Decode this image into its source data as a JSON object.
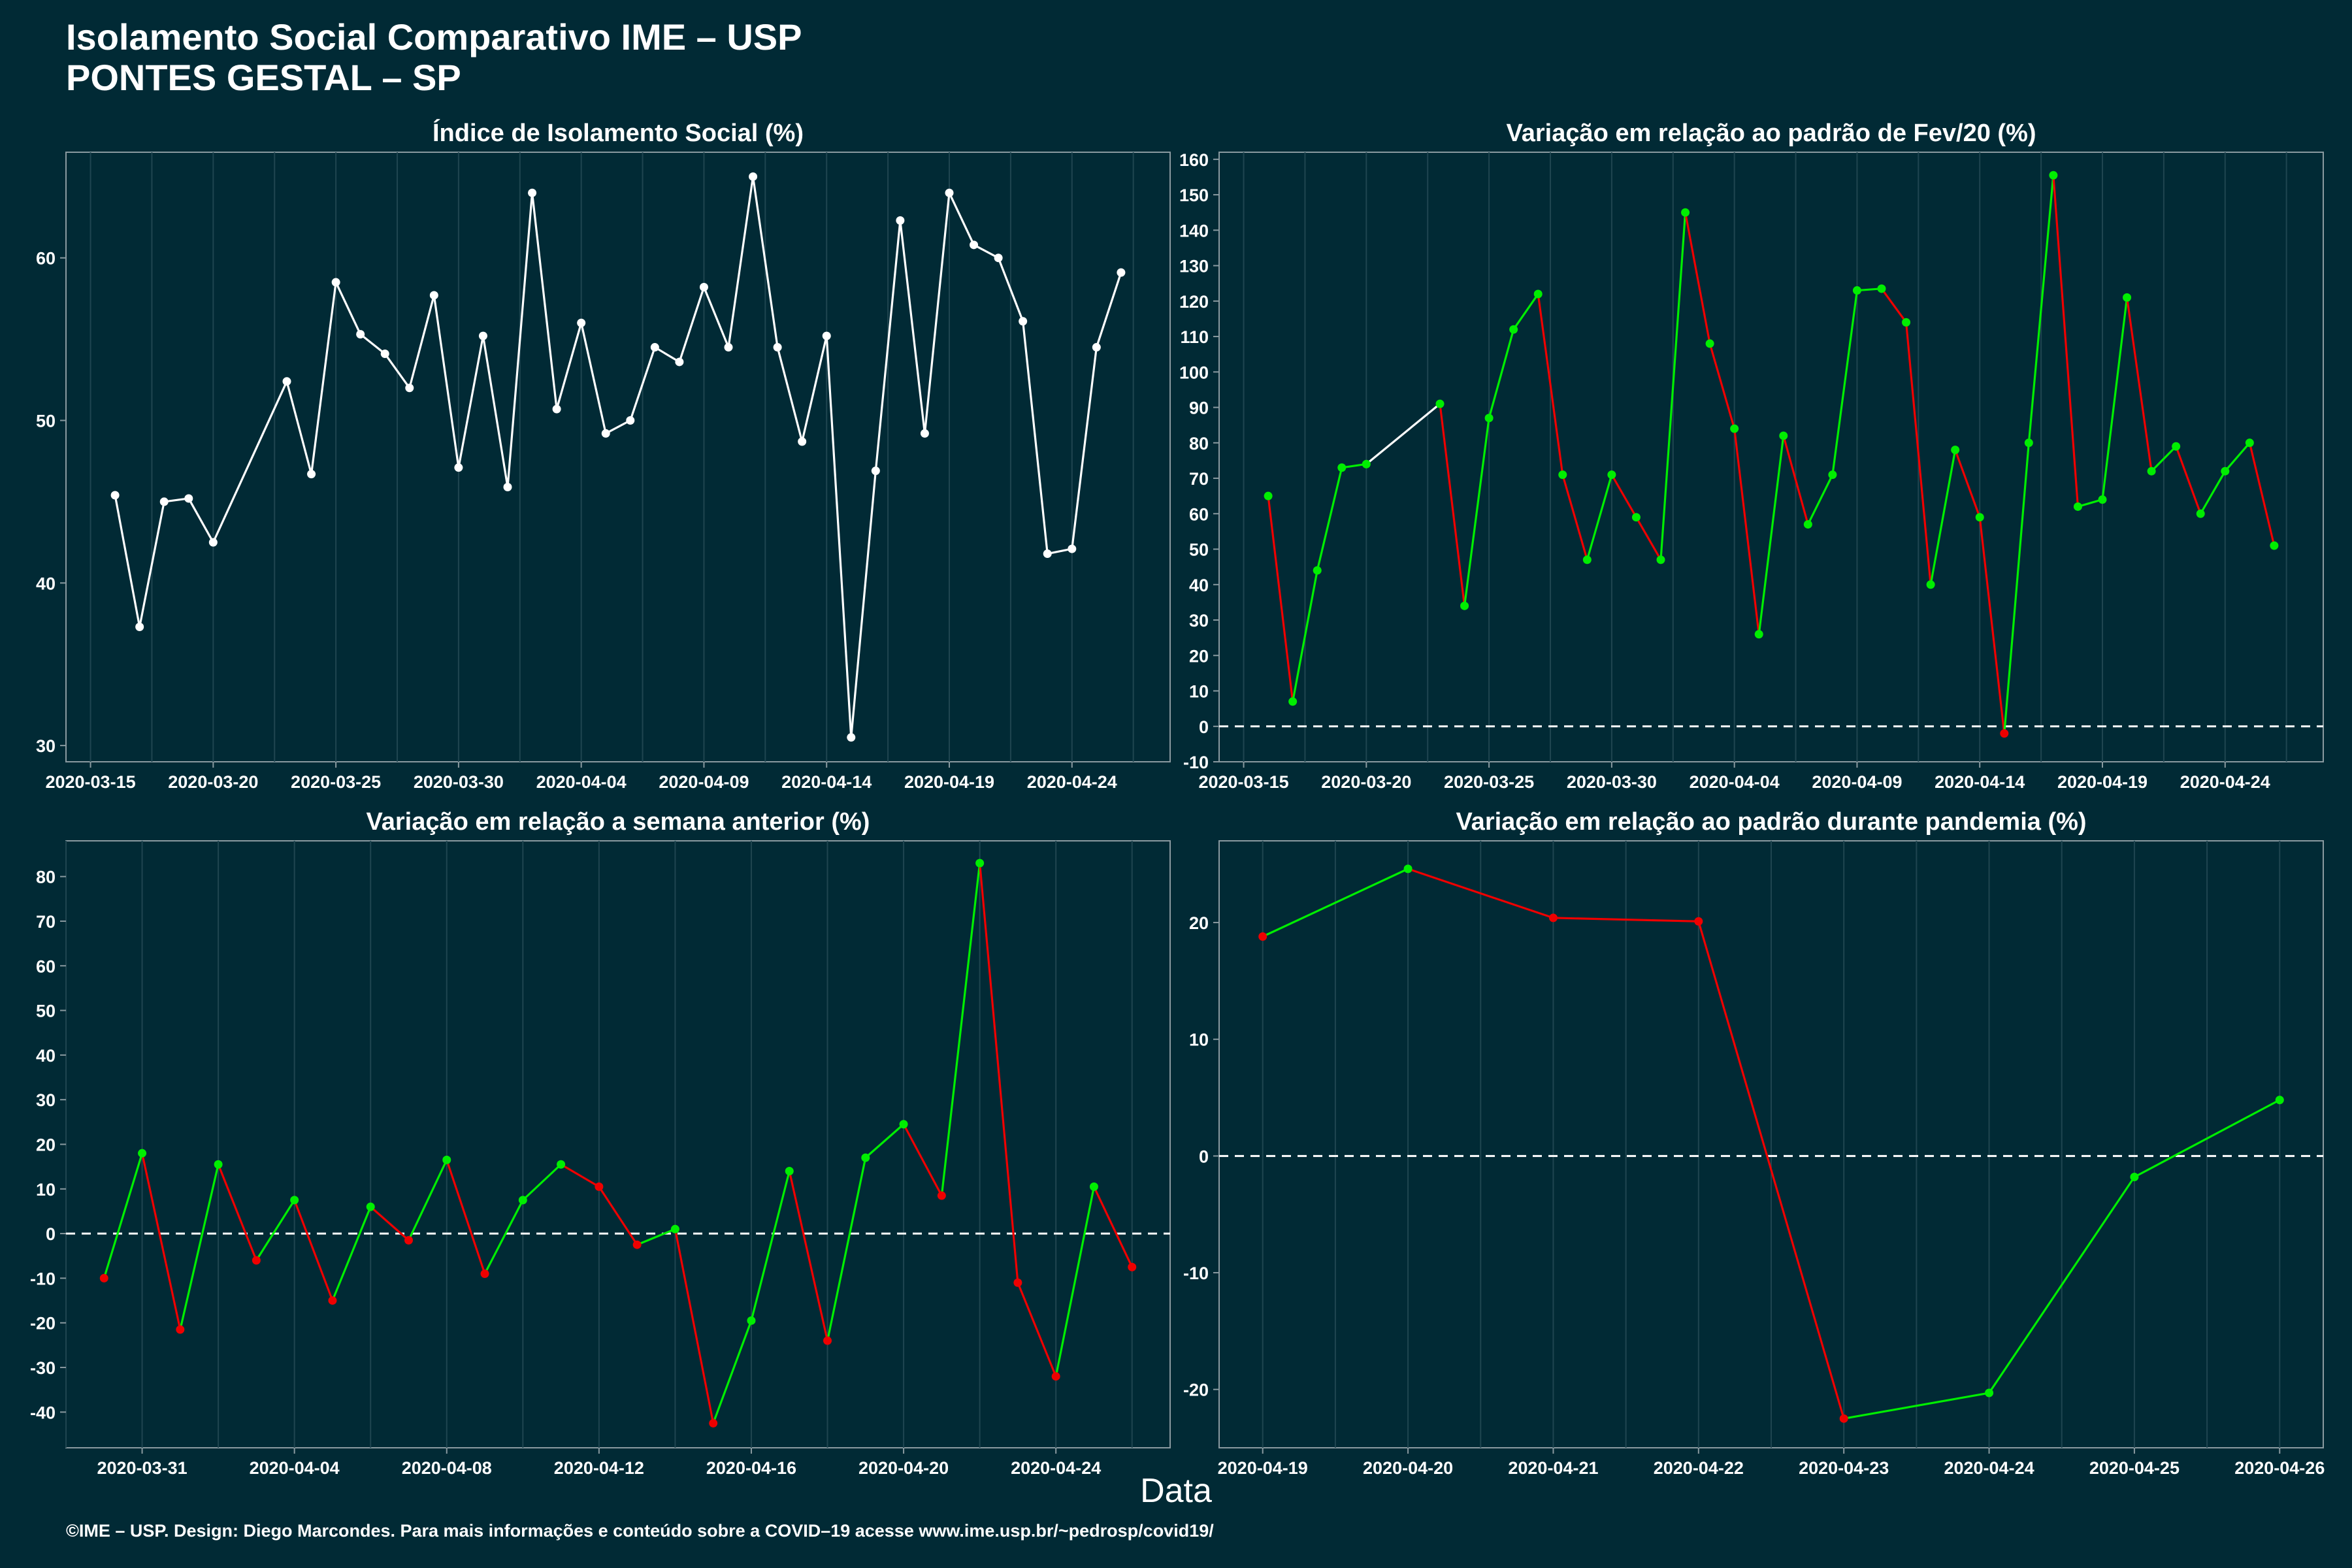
{
  "header": {
    "title_line1": "Isolamento Social Comparativo IME – USP",
    "title_line2": "PONTES GESTAL – SP"
  },
  "footer": "©IME – USP. Design: Diego Marcondes. Para mais informações e conteúdo sobre a COVID–19 acesse www.ime.usp.br/~pedrosp/covid19/",
  "x_axis_label": "Data",
  "colors": {
    "background": "#012a35",
    "white": "#ffffff",
    "positive": "#00ee00",
    "negative": "#ee0000",
    "grid": "#1f4550",
    "axis": "#8a9aa0"
  },
  "chart_data": [
    {
      "id": "indice",
      "type": "line",
      "title": "Índice de Isolamento Social (%)",
      "x_ticks": [
        "2020-03-15",
        "2020-03-20",
        "2020-03-25",
        "2020-03-30",
        "2020-04-04",
        "2020-04-09",
        "2020-04-14",
        "2020-04-19",
        "2020-04-24"
      ],
      "y_ticks": [
        30,
        40,
        50,
        60
      ],
      "ylim": [
        29,
        66.5
      ],
      "xlim": [
        "2020-03-14",
        "2020-04-28"
      ],
      "series": [
        {
          "x": [
            "2020-03-16",
            "2020-03-17",
            "2020-03-18",
            "2020-03-19",
            "2020-03-20",
            "2020-03-23",
            "2020-03-24",
            "2020-03-25",
            "2020-03-26",
            "2020-03-27",
            "2020-03-28",
            "2020-03-29",
            "2020-03-30",
            "2020-03-31",
            "2020-04-01",
            "2020-04-02",
            "2020-04-03",
            "2020-04-04",
            "2020-04-05",
            "2020-04-06",
            "2020-04-07",
            "2020-04-08",
            "2020-04-09",
            "2020-04-10",
            "2020-04-11",
            "2020-04-12",
            "2020-04-13",
            "2020-04-14",
            "2020-04-15",
            "2020-04-16",
            "2020-04-17",
            "2020-04-18",
            "2020-04-19",
            "2020-04-20",
            "2020-04-21",
            "2020-04-22",
            "2020-04-23",
            "2020-04-24",
            "2020-04-25",
            "2020-04-26"
          ],
          "values": [
            45.4,
            37.3,
            45.0,
            45.2,
            42.5,
            52.4,
            46.7,
            58.5,
            55.3,
            54.1,
            52.0,
            57.7,
            47.1,
            55.2,
            45.9,
            64.0,
            50.7,
            56.0,
            49.2,
            50.0,
            54.5,
            53.6,
            58.2,
            54.5,
            65.0,
            54.5,
            48.7,
            55.2,
            30.5,
            46.9,
            62.3,
            49.2,
            64.0,
            60.8,
            60.0,
            56.1,
            41.8,
            42.1,
            54.5,
            59.1
          ]
        }
      ]
    },
    {
      "id": "fev",
      "type": "line",
      "title": "Variação em relação ao padrão de Fev/20 (%)",
      "x_ticks": [
        "2020-03-15",
        "2020-03-20",
        "2020-03-25",
        "2020-03-30",
        "2020-04-04",
        "2020-04-09",
        "2020-04-14",
        "2020-04-19",
        "2020-04-24"
      ],
      "y_ticks": [
        -10,
        0,
        10,
        20,
        30,
        40,
        50,
        60,
        70,
        80,
        90,
        100,
        110,
        120,
        130,
        140,
        150,
        160
      ],
      "ylim": [
        -10,
        162
      ],
      "xlim": [
        "2020-03-14",
        "2020-04-28"
      ],
      "reference_line": 0,
      "series": [
        {
          "x": [
            "2020-03-16",
            "2020-03-17",
            "2020-03-18",
            "2020-03-19",
            "2020-03-20",
            "2020-03-23",
            "2020-03-24",
            "2020-03-25",
            "2020-03-26",
            "2020-03-27",
            "2020-03-28",
            "2020-03-29",
            "2020-03-30",
            "2020-03-31",
            "2020-04-01",
            "2020-04-02",
            "2020-04-03",
            "2020-04-04",
            "2020-04-05",
            "2020-04-06",
            "2020-04-07",
            "2020-04-08",
            "2020-04-09",
            "2020-04-10",
            "2020-04-11",
            "2020-04-12",
            "2020-04-13",
            "2020-04-14",
            "2020-04-15",
            "2020-04-16",
            "2020-04-17",
            "2020-04-18",
            "2020-04-19",
            "2020-04-20",
            "2020-04-21",
            "2020-04-22",
            "2020-04-23",
            "2020-04-24",
            "2020-04-25",
            "2020-04-26"
          ],
          "values": [
            65,
            7,
            44,
            73,
            74,
            91,
            34,
            87,
            112,
            122,
            71,
            47,
            71,
            59,
            47,
            145,
            108,
            84,
            26,
            82,
            57,
            71,
            123,
            123.5,
            114,
            40,
            78,
            59,
            -2,
            80,
            155.5,
            62,
            64,
            121,
            72,
            79,
            60,
            72,
            80,
            51
          ]
        }
      ]
    },
    {
      "id": "semana",
      "type": "line",
      "title": "Variação em relação a semana anterior (%)",
      "x_ticks": [
        "2020-03-31",
        "2020-04-04",
        "2020-04-08",
        "2020-04-12",
        "2020-04-16",
        "2020-04-20",
        "2020-04-24"
      ],
      "y_ticks": [
        -40,
        -30,
        -20,
        -10,
        0,
        10,
        20,
        30,
        40,
        50,
        60,
        70,
        80
      ],
      "ylim": [
        -48,
        88
      ],
      "xlim": [
        "2020-03-29",
        "2020-04-27"
      ],
      "reference_line": 0,
      "series": [
        {
          "x": [
            "2020-03-30",
            "2020-03-31",
            "2020-04-01",
            "2020-04-02",
            "2020-04-03",
            "2020-04-04",
            "2020-04-05",
            "2020-04-06",
            "2020-04-07",
            "2020-04-08",
            "2020-04-09",
            "2020-04-10",
            "2020-04-11",
            "2020-04-12",
            "2020-04-13",
            "2020-04-14",
            "2020-04-15",
            "2020-04-16",
            "2020-04-17",
            "2020-04-18",
            "2020-04-19",
            "2020-04-20",
            "2020-04-21",
            "2020-04-22",
            "2020-04-23",
            "2020-04-24",
            "2020-04-25",
            "2020-04-26"
          ],
          "values": [
            -10,
            18,
            -21.5,
            15.5,
            -6,
            7.5,
            -15,
            6,
            -1.5,
            16.5,
            -9,
            7.5,
            15.5,
            10.5,
            -2.5,
            1,
            -42.5,
            -19.5,
            14,
            -24,
            17,
            24.5,
            8.5,
            83,
            -11,
            -32,
            10.5,
            -7.5
          ]
        }
      ]
    },
    {
      "id": "pandemia",
      "type": "line",
      "title": "Variação em relação ao padrão durante pandemia (%)",
      "x_ticks": [
        "2020-04-19",
        "2020-04-20",
        "2020-04-21",
        "2020-04-22",
        "2020-04-23",
        "2020-04-24",
        "2020-04-25",
        "2020-04-26"
      ],
      "y_ticks": [
        -20,
        -10,
        0,
        10,
        20
      ],
      "ylim": [
        -25,
        27
      ],
      "xlim": [
        "2020-04-18.7",
        "2020-04-26.3"
      ],
      "reference_line": 0,
      "series": [
        {
          "x": [
            "2020-04-19",
            "2020-04-20",
            "2020-04-21",
            "2020-04-22",
            "2020-04-23",
            "2020-04-24",
            "2020-04-25",
            "2020-04-26"
          ],
          "values": [
            18.8,
            24.6,
            20.4,
            20.1,
            -22.5,
            -20.3,
            -1.8,
            4.8
          ]
        }
      ]
    }
  ]
}
